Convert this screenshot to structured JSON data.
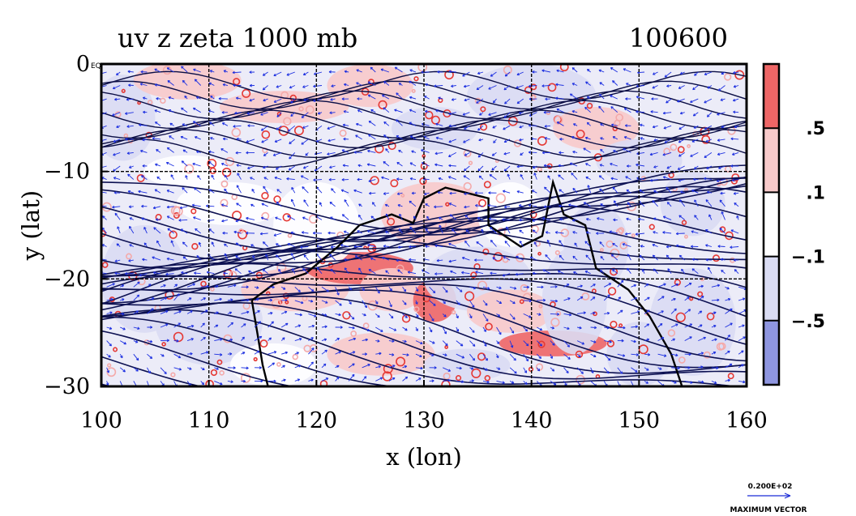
{
  "chart_data": {
    "type": "contour-vector map",
    "title": "uv z zeta 1000 mb",
    "date_label": "100600",
    "xlabel": "x (lon)",
    "ylabel": "y (lat)",
    "xlim": [
      100,
      160
    ],
    "ylim": [
      -30,
      0
    ],
    "x_ticks": [
      {
        "value": 100,
        "label": "100"
      },
      {
        "value": 110,
        "label": "110"
      },
      {
        "value": 120,
        "label": "120"
      },
      {
        "value": 130,
        "label": "130"
      },
      {
        "value": 140,
        "label": "140"
      },
      {
        "value": 150,
        "label": "150"
      },
      {
        "value": 160,
        "label": "160"
      }
    ],
    "y_ticks": [
      {
        "value": 0,
        "label": "0"
      },
      {
        "value": -10,
        "label": "−10"
      },
      {
        "value": -20,
        "label": "−20"
      },
      {
        "value": -30,
        "label": "−30"
      }
    ],
    "corner_label": "EQ",
    "grid": true,
    "colorbar": {
      "levels": [
        ".5",
        ".1",
        "−.1",
        "−.5"
      ],
      "colors": [
        "#ee6666",
        "#f8caca",
        "#ffffff",
        "#dadcf3",
        "#8f96e0"
      ]
    },
    "reference_vector": {
      "value_text": "0.200E+02",
      "caption": "MAXIMUM VECTOR"
    }
  }
}
